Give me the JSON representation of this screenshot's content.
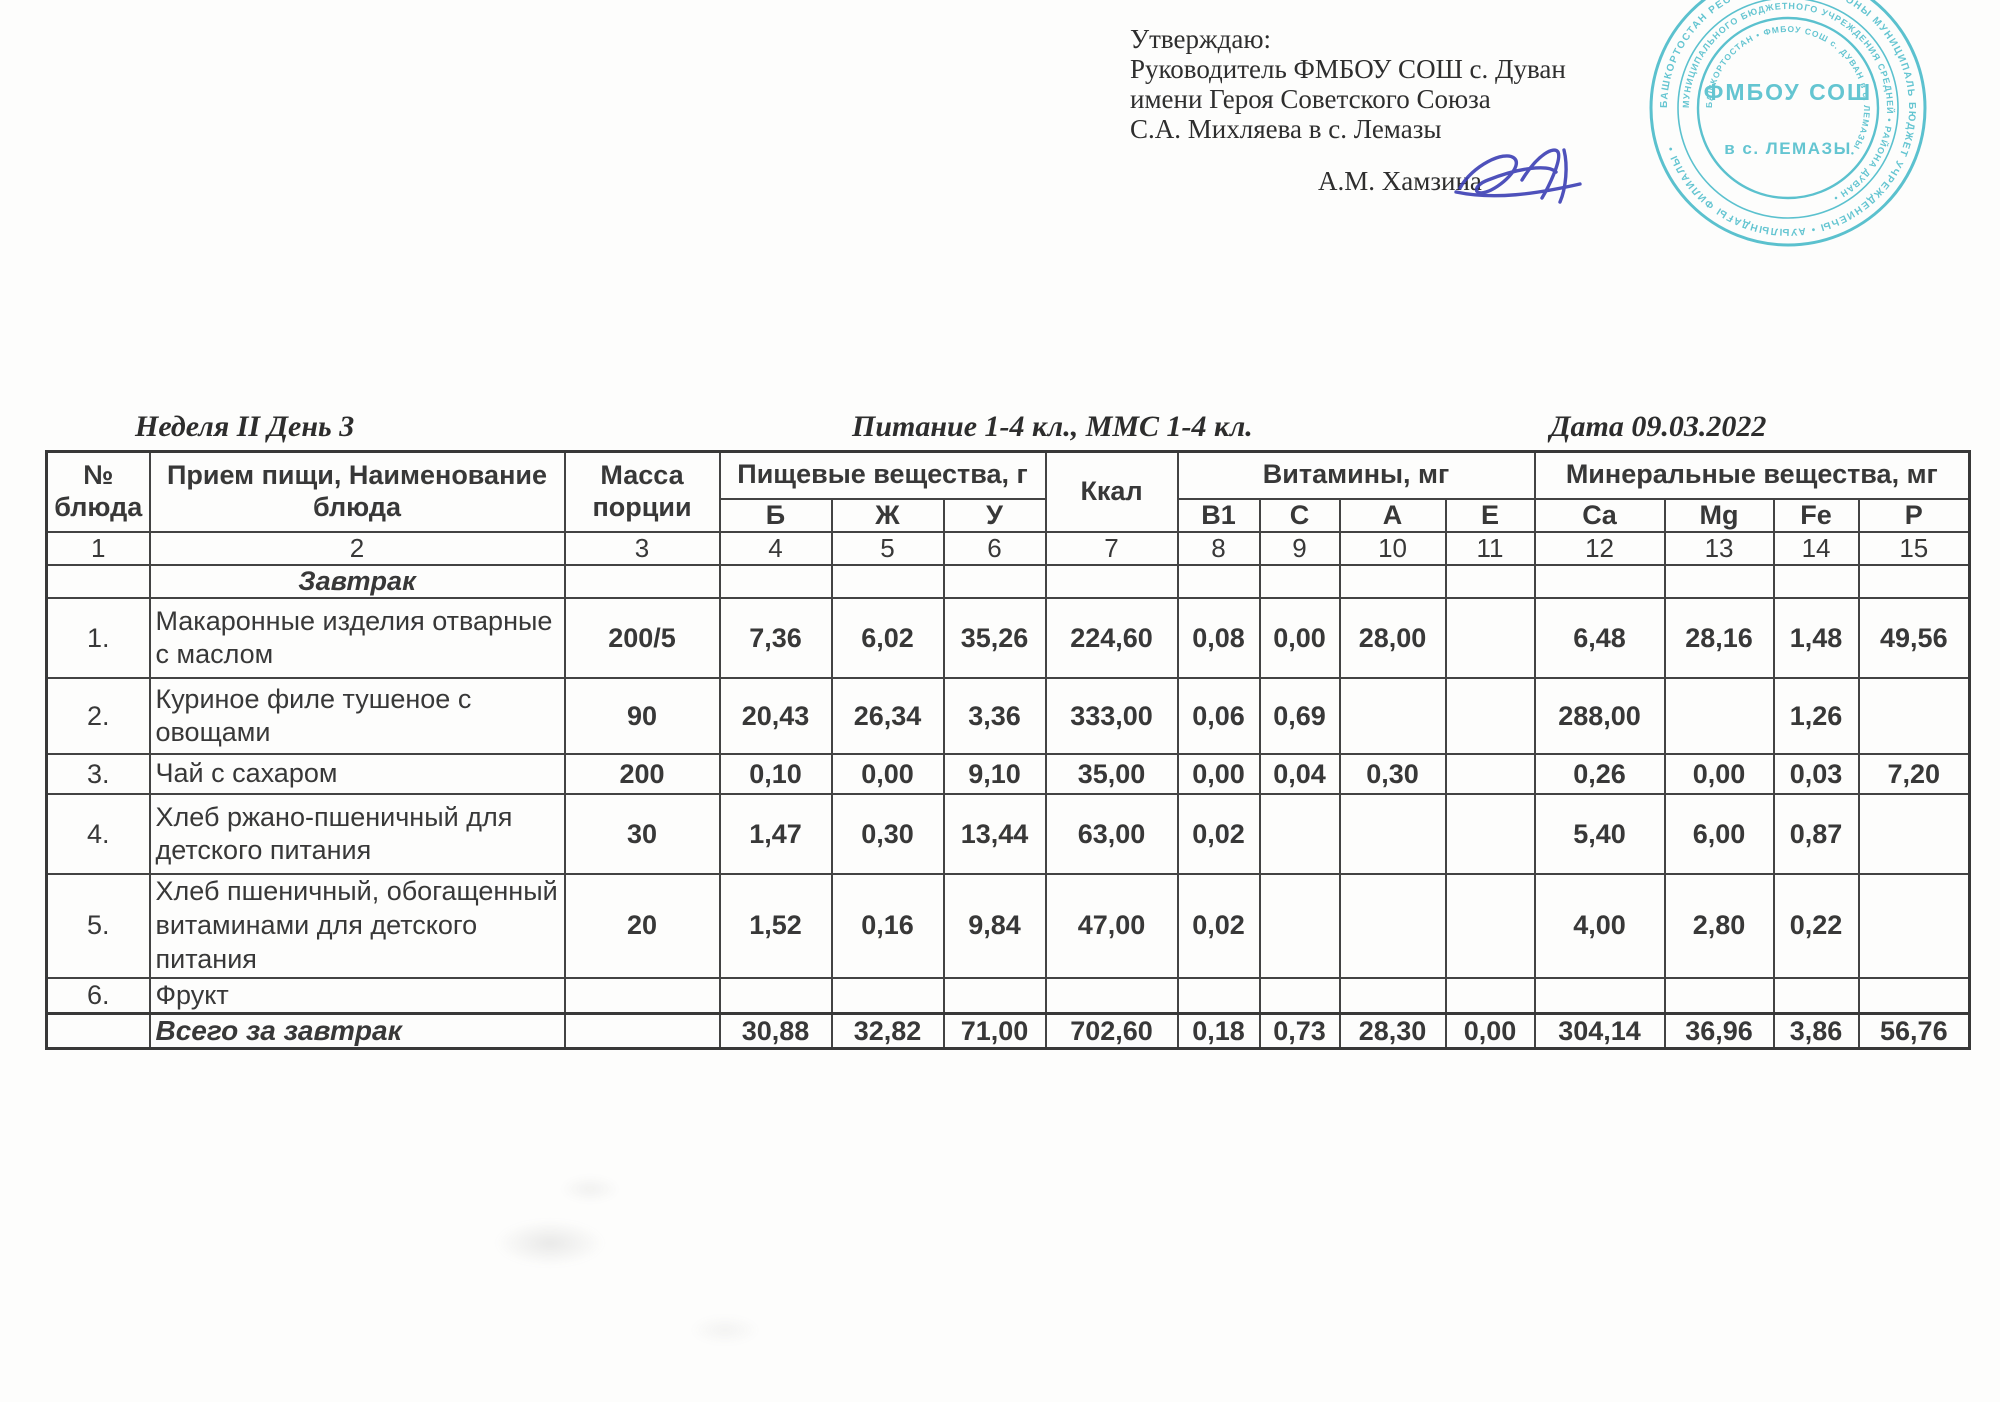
{
  "colors": {
    "stamp_teal": "#2fb3c5",
    "signature_blue": "#3c3fb5",
    "ink": "#3a3a3a"
  },
  "approval": {
    "line1": "Утверждаю:",
    "line2": "Руководитель ФМБОУ СОШ с. Дуван",
    "line3": "имени Героя Советского Союза",
    "line4": "С.А. Михляева в с. Лемазы",
    "signer": "А.М. Хамзина"
  },
  "stamp": {
    "center_line1": "ФМБОУ СОШ",
    "center_line2": "в с. ЛЕМАЗЫ",
    "ring_outer": "БАШКОРТОСТАН РЕСПУБЛИКАҺЫ • РАЙОНЫ МУНИЦИПАЛЬ БЮДЖЕТ УЧРЕЖДЕНИЕҺЫ • АУЫЛЫНДАҒЫ ФИЛИАЛЫ •",
    "ring_middle": "МУНИЦИПАЛЬНОГО БЮДЖЕТНОГО УЧРЕЖДЕНИЯ СРЕДНЕЙ • РАЙОНА ДУВАН •",
    "ring_inner": "БАШКОРТОСТАН • ФМБОУ СОШ с. ДУВАН в с. ЛЕМАЗЫ •"
  },
  "titles": {
    "week": "Неделя II День 3",
    "meal": "Питание  1-4 кл., ММС 1-4 кл.",
    "date": "Дата  09.03.2022"
  },
  "table": {
    "header": {
      "no": "№\nблюда",
      "name": "Прием пищи, Наименование\nблюда",
      "mass": "Масса\nпорции",
      "nutrients_group": "Пищевые вещества, г",
      "kcal": "Ккал",
      "vitamins_group": "Витамины, мг",
      "minerals_group": "Минеральные вещества, мг",
      "nutrients": [
        "Б",
        "Ж",
        "У"
      ],
      "vitamins": [
        "В1",
        "С",
        "А",
        "Е"
      ],
      "minerals": [
        "Ca",
        "Mg",
        "Fe",
        "P"
      ],
      "col_numbers": [
        "1",
        "2",
        "3",
        "4",
        "5",
        "6",
        "7",
        "8",
        "9",
        "10",
        "11",
        "12",
        "13",
        "14",
        "15"
      ]
    },
    "section": "Завтрак",
    "rows": [
      {
        "no": "1.",
        "name": "Макаронные изделия отварные с маслом",
        "mass": "200/5",
        "b": "7,36",
        "zh": "6,02",
        "u": "35,26",
        "kcal": "224,60",
        "b1": "0,08",
        "c": "0,00",
        "a": "28,00",
        "e": "",
        "ca": "6,48",
        "mg": "28,16",
        "fe": "1,48",
        "p": "49,56"
      },
      {
        "no": "2.",
        "name": "Куриное филе тушеное с овощами",
        "mass": "90",
        "b": "20,43",
        "zh": "26,34",
        "u": "3,36",
        "kcal": "333,00",
        "b1": "0,06",
        "c": "0,69",
        "a": "",
        "e": "",
        "ca": "288,00",
        "mg": "",
        "fe": "1,26",
        "p": ""
      },
      {
        "no": "3.",
        "name": "Чай с сахаром",
        "mass": "200",
        "b": "0,10",
        "zh": "0,00",
        "u": "9,10",
        "kcal": "35,00",
        "b1": "0,00",
        "c": "0,04",
        "a": "0,30",
        "e": "",
        "ca": "0,26",
        "mg": "0,00",
        "fe": "0,03",
        "p": "7,20"
      },
      {
        "no": "4.",
        "name": "Хлеб ржано-пшеничный для детского питания",
        "mass": "30",
        "b": "1,47",
        "zh": "0,30",
        "u": "13,44",
        "kcal": "63,00",
        "b1": "0,02",
        "c": "",
        "a": "",
        "e": "",
        "ca": "5,40",
        "mg": "6,00",
        "fe": "0,87",
        "p": ""
      },
      {
        "no": "5.",
        "name": "Хлеб пшеничный, обогащенный витаминами для детского питания",
        "mass": "20",
        "b": "1,52",
        "zh": "0,16",
        "u": "9,84",
        "kcal": "47,00",
        "b1": "0,02",
        "c": "",
        "a": "",
        "e": "",
        "ca": "4,00",
        "mg": "2,80",
        "fe": "0,22",
        "p": ""
      },
      {
        "no": "6.",
        "name": "Фрукт",
        "mass": "",
        "b": "",
        "zh": "",
        "u": "",
        "kcal": "",
        "b1": "",
        "c": "",
        "a": "",
        "e": "",
        "ca": "",
        "mg": "",
        "fe": "",
        "p": ""
      }
    ],
    "total": {
      "label": "Всего за завтрак",
      "b": "30,88",
      "zh": "32,82",
      "u": "71,00",
      "kcal": "702,60",
      "b1": "0,18",
      "c": "0,73",
      "a": "28,30",
      "e": "0,00",
      "ca": "304,14",
      "mg": "36,96",
      "fe": "3,86",
      "p": "56,76"
    }
  }
}
